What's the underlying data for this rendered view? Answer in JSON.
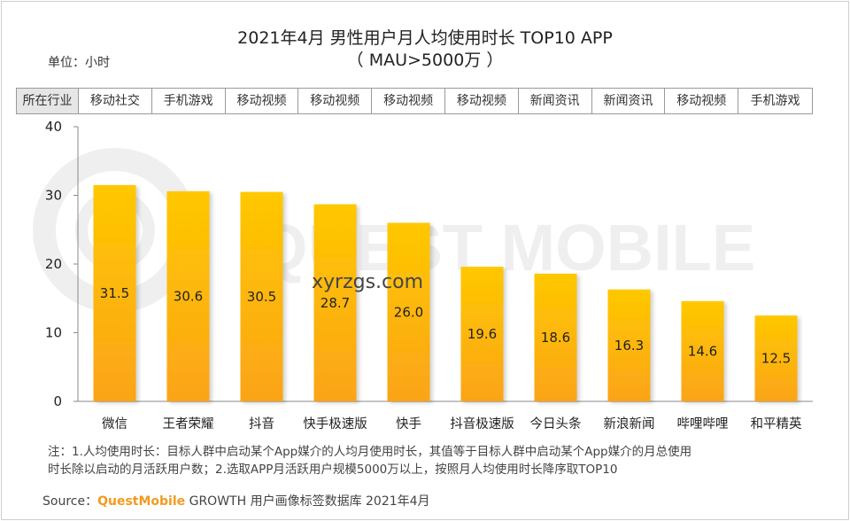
{
  "header": {
    "title_line1": "2021年4月 男性用户月人均使用时长 TOP10 APP",
    "title_line2": "（ MAU>5000万 ）",
    "unit": "单位：小时"
  },
  "industry_row": {
    "header": "所在行业",
    "items": [
      "移动社交",
      "手机游戏",
      "移动视频",
      "移动视频",
      "移动视频",
      "移动视频",
      "新闻资讯",
      "新闻资讯",
      "移动视频",
      "手机游戏"
    ]
  },
  "chart_data": {
    "type": "bar",
    "categories": [
      "微信",
      "王者荣耀",
      "抖音",
      "快手极速版",
      "快手",
      "抖音极速版",
      "今日头条",
      "新浪新闻",
      "哔哩哔哩",
      "和平精英"
    ],
    "values": [
      31.5,
      30.6,
      30.5,
      28.7,
      26.0,
      19.6,
      18.6,
      16.3,
      14.6,
      12.5
    ],
    "value_labels": [
      "31.5",
      "30.6",
      "30.5",
      "28.7",
      "26.0",
      "19.6",
      "18.6",
      "16.3",
      "14.6",
      "12.5"
    ],
    "ylim": [
      0,
      40
    ],
    "yticks": [
      0,
      10,
      20,
      30,
      40
    ],
    "bar_color_top": "#ffc800",
    "bar_color_bottom": "#fba418"
  },
  "watermark": {
    "brand": "QUEST MOBILE",
    "site": "xyrzgs.com"
  },
  "footer": {
    "note_line1": "注：1.人均使用时长：目标人群中启动某个App媒介的人均月使用时长，其值等于目标人群中启动某个App媒介的月总使用",
    "note_line2": "时长除以启动的月活跃用户数；2.选取APP月活跃用户规模5000万以上，按照月人均使用时长降序取TOP10",
    "source_label": "Source：",
    "source_brand": "QuestMobile",
    "source_rest": " GROWTH 用户画像标签数据库 2021年4月"
  }
}
